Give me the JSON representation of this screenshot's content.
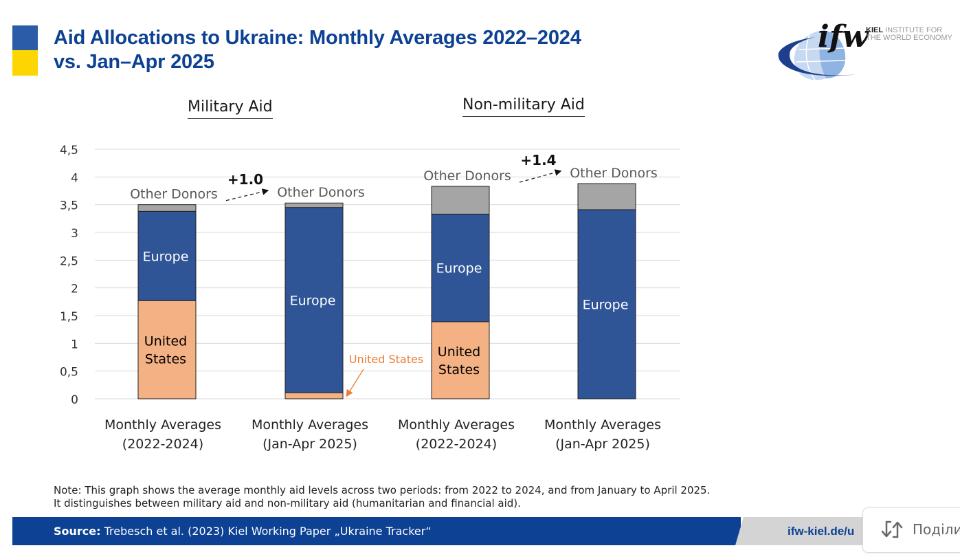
{
  "header": {
    "title_line1": "Aid Allocations to Ukraine: Monthly Averages 2022–2024",
    "title_line2": "vs.  Jan–Apr 2025",
    "flag_colors": [
      "#2b5ca8",
      "#fdd500"
    ],
    "logo": {
      "mark": "ifw",
      "name_bold": "KIEL",
      "name_rest_line1": "INSTITUTE FOR",
      "name_line2": "THE WORLD ECONOMY"
    }
  },
  "sections": {
    "military": "Military Aid",
    "non_military": "Non-military Aid"
  },
  "chart_data": {
    "type": "bar",
    "stacked": true,
    "title": "",
    "xlabel": "",
    "ylabel": "",
    "ylim": [
      0,
      4.5
    ],
    "yticks": [
      "0",
      "0,5",
      "1",
      "1,5",
      "2",
      "2,5",
      "3",
      "3,5",
      "4",
      "4,5"
    ],
    "ytick_values": [
      0,
      0.5,
      1,
      1.5,
      2,
      2.5,
      3,
      3.5,
      4,
      4.5
    ],
    "grid": true,
    "categories": [
      [
        "Monthly Averages",
        "(2022-2024)"
      ],
      [
        "Monthly Averages",
        "(Jan-Apr 2025)"
      ],
      [
        "Monthly Averages",
        "(2022-2024)"
      ],
      [
        "Monthly Averages",
        "(Jan-Apr 2025)"
      ]
    ],
    "groups": [
      "Military Aid",
      "Military Aid",
      "Non-military Aid",
      "Non-military Aid"
    ],
    "series": [
      {
        "name": "United States",
        "color": "#f4b183",
        "values": [
          1.77,
          0.11,
          1.39,
          0.0
        ]
      },
      {
        "name": "Europe",
        "color": "#2f5597",
        "values": [
          1.61,
          3.34,
          1.94,
          3.41
        ]
      },
      {
        "name": "Other Donors",
        "color": "#a5a5a5",
        "values": [
          0.12,
          0.08,
          0.5,
          0.47
        ]
      }
    ],
    "segment_labels": [
      {
        "bar": 0,
        "series": "United States",
        "lines": [
          "United",
          "States"
        ],
        "color": "#000000"
      },
      {
        "bar": 0,
        "series": "Europe",
        "lines": [
          "Europe"
        ],
        "color": "#ffffff"
      },
      {
        "bar": 1,
        "series": "Europe",
        "lines": [
          "Europe"
        ],
        "color": "#ffffff"
      },
      {
        "bar": 2,
        "series": "United States",
        "lines": [
          "United",
          "States"
        ],
        "color": "#000000"
      },
      {
        "bar": 2,
        "series": "Europe",
        "lines": [
          "Europe"
        ],
        "color": "#ffffff"
      },
      {
        "bar": 3,
        "series": "Europe",
        "lines": [
          "Europe"
        ],
        "color": "#ffffff"
      }
    ],
    "above_labels": [
      {
        "bar": 0,
        "text": "Other Donors"
      },
      {
        "bar": 1,
        "text": "Other Donors"
      },
      {
        "bar": 2,
        "text": "Other Donors"
      },
      {
        "bar": 3,
        "text": "Other Donors"
      }
    ],
    "annotations": [
      {
        "from_bar": 0,
        "to_bar": 1,
        "text": "+1.0"
      },
      {
        "from_bar": 2,
        "to_bar": 3,
        "text": "+1.4"
      },
      {
        "bar": 1,
        "series": "United States",
        "text": "United States",
        "color": "#ed7d31"
      }
    ]
  },
  "note": {
    "line1": "Note: This graph shows the average monthly aid levels across two periods: from 2022 to 2024, and from January to April 2025.",
    "line2": "It distinguishes between military aid and non-military aid (humanitarian and financial aid)."
  },
  "footer": {
    "source_label": "Source:",
    "source_text": " Trebesch et al. (2023) Kiel Working Paper „Ukraine Tracker“",
    "url": "ifw-kiel.de/u"
  },
  "share_button": {
    "label": "Поділи",
    "icon": "share-arrows-icon"
  }
}
